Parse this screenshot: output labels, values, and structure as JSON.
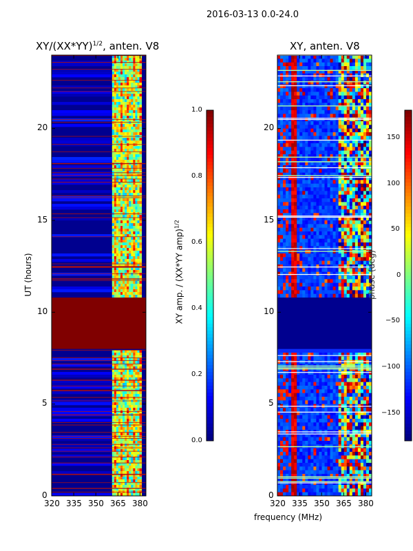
{
  "header": {
    "title": "2016-03-13 0.0-24.0"
  },
  "chart_data": [
    {
      "type": "heatmap",
      "title": "XY/(XX*YY)",
      "title_sup": "1/2",
      "title_suffix": ", anten. V8",
      "xlabel": "frequency (MHz)",
      "ylabel": "UT (hours)",
      "xlim": [
        320,
        384
      ],
      "ylim": [
        0,
        24
      ],
      "xticks": [
        320,
        335,
        350,
        365,
        380
      ],
      "yticks": [
        0,
        5,
        10,
        15,
        20
      ],
      "colormap": "jet",
      "colorbar": {
        "label": "XY amp. / (XX*YY amp)",
        "label_sup": "1/2",
        "range": [
          0.0,
          1.0
        ],
        "ticks": [
          "0.0",
          "0.2",
          "0.4",
          "0.6",
          "0.8",
          "1.0"
        ]
      },
      "flagged_block_hours": [
        8.0,
        10.8
      ],
      "active_band_mhz": [
        361,
        381
      ]
    },
    {
      "type": "heatmap",
      "title": "XY, anten. V8",
      "xlabel": "frequency (MHz)",
      "ylabel": "",
      "xlim": [
        320,
        384
      ],
      "ylim": [
        0,
        24
      ],
      "xticks": [
        320,
        335,
        350,
        365,
        380
      ],
      "yticks": [
        0,
        5,
        10,
        15,
        20
      ],
      "colormap": "jet",
      "colorbar": {
        "label": "phase (deg)",
        "range": [
          -180,
          180
        ],
        "ticks": [
          "−150",
          "−100",
          "−50",
          "0",
          "50",
          "100",
          "150"
        ]
      },
      "blank_block_hours": [
        8.0,
        10.8
      ],
      "active_band_mhz": [
        361,
        381
      ]
    }
  ],
  "colors": {
    "jet_dark_blue": "#00008f",
    "jet_blue": "#0000ff",
    "jet_cyan": "#00ffff",
    "jet_yellow": "#ffff00",
    "jet_red": "#ff0000",
    "jet_dark_red": "#800000"
  }
}
